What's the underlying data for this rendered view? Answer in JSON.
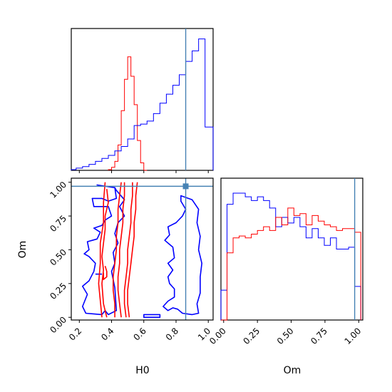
{
  "chart_data": {
    "type": "corner",
    "parameters": [
      "H0",
      "Om"
    ],
    "truth": {
      "H0": 0.86,
      "Om": 0.97,
      "color": "#4682b4"
    },
    "series_colors": {
      "series_a": "#0000ff",
      "series_b": "#ff0000"
    },
    "axes": {
      "H0": {
        "label": "H0",
        "range": [
          0.15,
          1.03
        ],
        "ticks": [
          0.2,
          0.4,
          0.6,
          0.8,
          1.0
        ],
        "tick_labels": [
          "0.2",
          "0.4",
          "0.6",
          "0.8",
          "1.0"
        ]
      },
      "Om": {
        "label": "Om",
        "range": [
          -0.02,
          1.03
        ],
        "ticks": [
          0.0,
          0.25,
          0.5,
          0.75,
          1.0
        ],
        "tick_labels": [
          "0.00",
          "0.25",
          "0.50",
          "0.75",
          "1.00"
        ]
      }
    },
    "hist_H0": {
      "series_a": {
        "edges": [
          0.1,
          0.14,
          0.18,
          0.22,
          0.26,
          0.3,
          0.34,
          0.38,
          0.42,
          0.46,
          0.5,
          0.54,
          0.58,
          0.62,
          0.66,
          0.7,
          0.74,
          0.78,
          0.82,
          0.86,
          0.9,
          0.94,
          0.98,
          1.03
        ],
        "values": [
          0,
          0.005,
          0.015,
          0.025,
          0.04,
          0.06,
          0.08,
          0.1,
          0.13,
          0.16,
          0.21,
          0.3,
          0.31,
          0.33,
          0.38,
          0.45,
          0.51,
          0.57,
          0.64,
          0.73,
          0.8,
          0.88,
          0.29
        ]
      },
      "series_b": {
        "edges": [
          0.38,
          0.4,
          0.42,
          0.44,
          0.46,
          0.48,
          0.5,
          0.52,
          0.54,
          0.56,
          0.58,
          0.6,
          0.62
        ],
        "values": [
          0.005,
          0.02,
          0.06,
          0.17,
          0.4,
          0.61,
          0.76,
          0.63,
          0.44,
          0.2,
          0.05,
          0.0
        ]
      }
    },
    "hist_Om": {
      "series_a": {
        "edges": [
          -0.02,
          0.025,
          0.07,
          0.115,
          0.16,
          0.205,
          0.25,
          0.295,
          0.34,
          0.385,
          0.43,
          0.475,
          0.52,
          0.565,
          0.61,
          0.655,
          0.7,
          0.745,
          0.79,
          0.835,
          0.88,
          0.925,
          0.97,
          1.015
        ],
        "values": [
          0.16,
          0.62,
          0.68,
          0.68,
          0.66,
          0.64,
          0.66,
          0.64,
          0.6,
          0.5,
          0.55,
          0.52,
          0.55,
          0.5,
          0.44,
          0.49,
          0.44,
          0.4,
          0.44,
          0.38,
          0.38,
          0.39,
          0.18
        ]
      },
      "series_b": {
        "edges": [
          -0.02,
          0.025,
          0.07,
          0.115,
          0.16,
          0.205,
          0.25,
          0.295,
          0.34,
          0.385,
          0.43,
          0.475,
          0.52,
          0.565,
          0.61,
          0.655,
          0.7,
          0.745,
          0.79,
          0.835,
          0.88,
          0.925,
          0.97,
          1.015
        ],
        "values": [
          0,
          0.36,
          0.44,
          0.45,
          0.44,
          0.46,
          0.48,
          0.5,
          0.48,
          0.55,
          0.51,
          0.6,
          0.56,
          0.57,
          0.51,
          0.56,
          0.53,
          0.51,
          0.5,
          0.48,
          0.49,
          0.49,
          0.47
        ]
      }
    },
    "contours": {
      "series_a": [
        [
          [
            0.31,
            0.98
          ],
          [
            0.42,
            0.96
          ],
          [
            0.43,
            0.88
          ],
          [
            0.38,
            0.86
          ],
          [
            0.34,
            0.88
          ],
          [
            0.28,
            0.88
          ],
          [
            0.29,
            0.82
          ],
          [
            0.38,
            0.82
          ],
          [
            0.4,
            0.75
          ],
          [
            0.36,
            0.72
          ],
          [
            0.34,
            0.68
          ],
          [
            0.29,
            0.66
          ],
          [
            0.33,
            0.63
          ],
          [
            0.31,
            0.58
          ],
          [
            0.25,
            0.56
          ],
          [
            0.26,
            0.5
          ],
          [
            0.23,
            0.47
          ],
          [
            0.26,
            0.45
          ],
          [
            0.3,
            0.4
          ],
          [
            0.29,
            0.34
          ],
          [
            0.26,
            0.27
          ],
          [
            0.22,
            0.23
          ],
          [
            0.25,
            0.17
          ],
          [
            0.22,
            0.08
          ],
          [
            0.24,
            0.03
          ],
          [
            0.34,
            0.02
          ],
          [
            0.36,
            0.05
          ],
          [
            0.38,
            0.02
          ],
          [
            0.43,
            0.05
          ],
          [
            0.42,
            0.22
          ],
          [
            0.4,
            0.34
          ],
          [
            0.42,
            0.4
          ],
          [
            0.41,
            0.48
          ],
          [
            0.44,
            0.55
          ],
          [
            0.42,
            0.62
          ],
          [
            0.44,
            0.7
          ],
          [
            0.48,
            0.75
          ],
          [
            0.45,
            0.82
          ],
          [
            0.48,
            0.87
          ],
          [
            0.43,
            0.94
          ],
          [
            0.42,
            0.96
          ]
        ],
        [
          [
            0.83,
            0.9
          ],
          [
            0.9,
            0.87
          ],
          [
            0.94,
            0.8
          ],
          [
            0.93,
            0.7
          ],
          [
            0.95,
            0.6
          ],
          [
            0.94,
            0.5
          ],
          [
            0.96,
            0.4
          ],
          [
            0.95,
            0.3
          ],
          [
            0.95,
            0.18
          ],
          [
            0.93,
            0.1
          ],
          [
            0.94,
            0.03
          ],
          [
            0.9,
            0.02
          ],
          [
            0.84,
            0.03
          ],
          [
            0.81,
            0.06
          ],
          [
            0.78,
            0.07
          ],
          [
            0.75,
            0.05
          ],
          [
            0.72,
            0.08
          ],
          [
            0.75,
            0.12
          ],
          [
            0.79,
            0.15
          ],
          [
            0.79,
            0.21
          ],
          [
            0.76,
            0.25
          ],
          [
            0.75,
            0.3
          ],
          [
            0.78,
            0.35
          ],
          [
            0.75,
            0.4
          ],
          [
            0.79,
            0.44
          ],
          [
            0.78,
            0.52
          ],
          [
            0.76,
            0.54
          ],
          [
            0.73,
            0.57
          ],
          [
            0.76,
            0.61
          ],
          [
            0.75,
            0.67
          ],
          [
            0.8,
            0.7
          ],
          [
            0.84,
            0.75
          ],
          [
            0.86,
            0.8
          ],
          [
            0.83,
            0.86
          ]
        ],
        [
          [
            0.3,
            0.32
          ],
          [
            0.34,
            0.32
          ]
        ],
        [
          [
            0.6,
            0.0
          ],
          [
            0.7,
            0.0
          ],
          [
            0.7,
            0.02
          ],
          [
            0.6,
            0.02
          ]
        ]
      ],
      "series_b": [
        [
          [
            0.36,
            1.0
          ],
          [
            0.35,
            0.85
          ],
          [
            0.35,
            0.7
          ],
          [
            0.33,
            0.55
          ],
          [
            0.33,
            0.4
          ],
          [
            0.32,
            0.25
          ],
          [
            0.34,
            0.0
          ]
        ],
        [
          [
            0.37,
            0.95
          ],
          [
            0.38,
            0.85
          ],
          [
            0.36,
            0.75
          ],
          [
            0.36,
            0.65
          ],
          [
            0.35,
            0.55
          ],
          [
            0.34,
            0.45
          ],
          [
            0.35,
            0.35
          ],
          [
            0.34,
            0.25
          ],
          [
            0.35,
            0.1
          ],
          [
            0.37,
            0.0
          ]
        ],
        [
          [
            0.36,
            0.38
          ],
          [
            0.37,
            0.34
          ],
          [
            0.37,
            0.3
          ],
          [
            0.35,
            0.28
          ],
          [
            0.35,
            0.33
          ]
        ],
        [
          [
            0.46,
            1.0
          ],
          [
            0.45,
            0.9
          ],
          [
            0.44,
            0.8
          ],
          [
            0.44,
            0.7
          ],
          [
            0.43,
            0.6
          ],
          [
            0.43,
            0.5
          ],
          [
            0.42,
            0.4
          ],
          [
            0.41,
            0.3
          ],
          [
            0.41,
            0.2
          ],
          [
            0.42,
            0.1
          ],
          [
            0.42,
            0.0
          ]
        ],
        [
          [
            0.48,
            1.0
          ],
          [
            0.48,
            0.9
          ],
          [
            0.47,
            0.8
          ],
          [
            0.47,
            0.7
          ],
          [
            0.46,
            0.6
          ],
          [
            0.45,
            0.5
          ],
          [
            0.45,
            0.4
          ],
          [
            0.44,
            0.3
          ],
          [
            0.44,
            0.2
          ],
          [
            0.45,
            0.1
          ],
          [
            0.46,
            0.0
          ]
        ],
        [
          [
            0.53,
            1.0
          ],
          [
            0.53,
            0.9
          ],
          [
            0.52,
            0.8
          ],
          [
            0.52,
            0.7
          ],
          [
            0.51,
            0.6
          ],
          [
            0.5,
            0.5
          ],
          [
            0.5,
            0.4
          ],
          [
            0.49,
            0.3
          ],
          [
            0.48,
            0.2
          ],
          [
            0.48,
            0.1
          ],
          [
            0.49,
            0.0
          ]
        ],
        [
          [
            0.56,
            1.0
          ],
          [
            0.55,
            0.9
          ],
          [
            0.55,
            0.8
          ],
          [
            0.54,
            0.7
          ],
          [
            0.54,
            0.6
          ],
          [
            0.53,
            0.5
          ],
          [
            0.52,
            0.4
          ],
          [
            0.51,
            0.3
          ],
          [
            0.5,
            0.2
          ],
          [
            0.5,
            0.1
          ],
          [
            0.51,
            0.0
          ]
        ]
      ]
    }
  }
}
